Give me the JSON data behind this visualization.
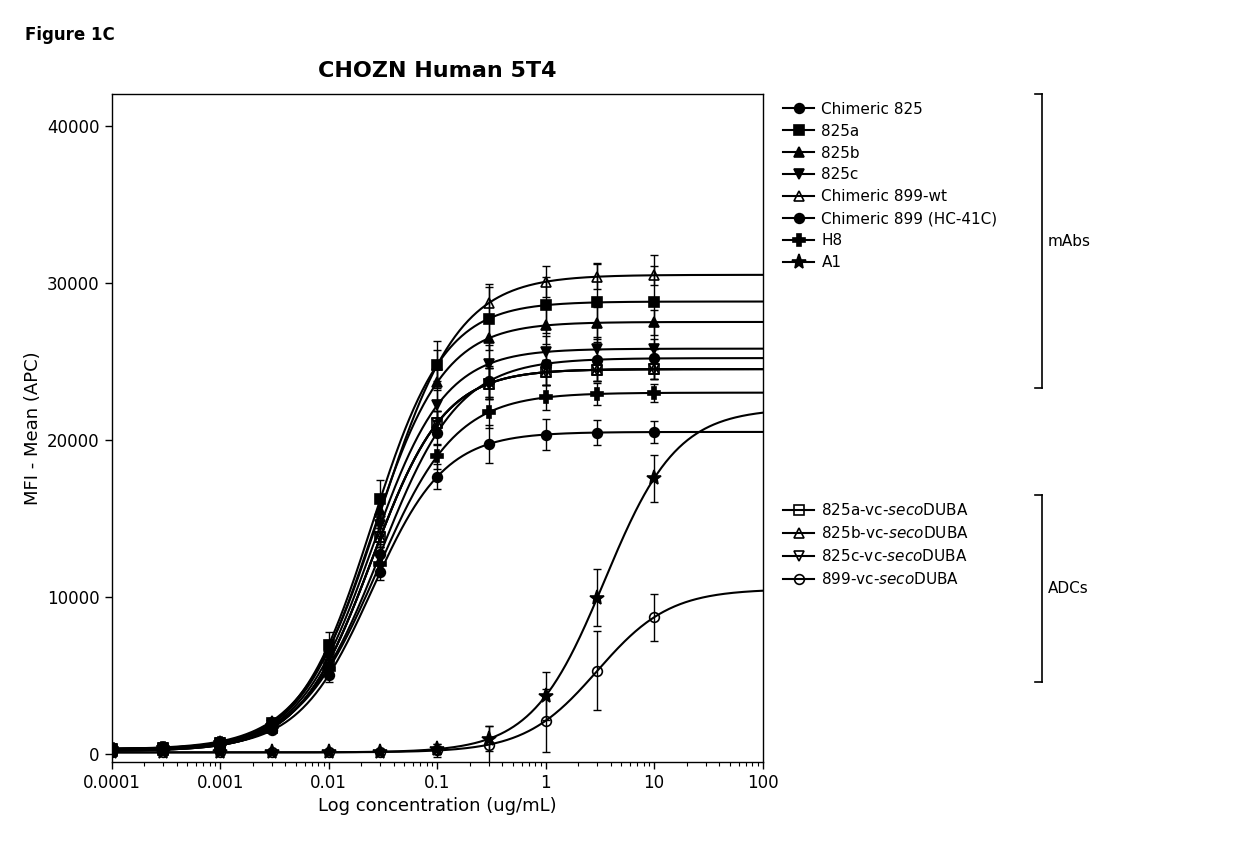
{
  "title": "CHOZN Human 5T4",
  "xlabel": "Log concentration (ug/mL)",
  "ylabel": "MFI - Mean (APC)",
  "figure_label": "Figure 1C",
  "ylim": [
    -500,
    42000
  ],
  "yticks": [
    0,
    10000,
    20000,
    30000,
    40000
  ],
  "ytick_labels": [
    "0",
    "10000",
    "20000",
    "30000",
    "40000"
  ],
  "xtick_locs": [
    0.0001,
    0.001,
    0.01,
    0.1,
    1,
    10,
    100
  ],
  "xtick_labels": [
    "0.0001",
    "0.001",
    "0.01",
    "0.1",
    "1",
    "10",
    "100"
  ],
  "series": [
    {
      "name": "Chimeric 825",
      "marker": "o",
      "fillstyle": "full",
      "ec50": 0.025,
      "bottom": 300,
      "top": 20500,
      "hill": 1.3,
      "group": "mAbs",
      "data_x": [
        0.0001,
        0.0003,
        0.001,
        0.003,
        0.01,
        0.03,
        0.1,
        0.3,
        1.0,
        3.0,
        10.0
      ],
      "data_yerr": [
        200,
        150,
        200,
        200,
        400,
        500,
        800,
        1200,
        1000,
        800,
        700
      ]
    },
    {
      "name": "825a",
      "marker": "s",
      "fillstyle": "full",
      "ec50": 0.025,
      "bottom": 300,
      "top": 28800,
      "hill": 1.3,
      "group": "mAbs",
      "data_x": [
        0.0001,
        0.0003,
        0.001,
        0.003,
        0.01,
        0.03,
        0.1,
        0.3,
        1.0,
        3.0,
        10.0
      ],
      "data_yerr": [
        200,
        200,
        250,
        300,
        800,
        1200,
        1500,
        2000,
        1800,
        2500,
        3000
      ]
    },
    {
      "name": "825b",
      "marker": "^",
      "fillstyle": "full",
      "ec50": 0.025,
      "bottom": 300,
      "top": 27500,
      "hill": 1.3,
      "group": "mAbs",
      "data_x": [
        0.0001,
        0.0003,
        0.001,
        0.003,
        0.01,
        0.03,
        0.1,
        0.3,
        1.0,
        3.0,
        10.0
      ],
      "data_yerr": [
        150,
        150,
        200,
        250,
        600,
        900,
        1200,
        1500,
        1200,
        1000,
        800
      ]
    },
    {
      "name": "825c",
      "marker": "v",
      "fillstyle": "full",
      "ec50": 0.025,
      "bottom": 300,
      "top": 25800,
      "hill": 1.3,
      "group": "mAbs",
      "data_x": [
        0.0001,
        0.0003,
        0.001,
        0.003,
        0.01,
        0.03,
        0.1,
        0.3,
        1.0,
        3.0,
        10.0
      ],
      "data_yerr": [
        150,
        150,
        200,
        250,
        500,
        700,
        1000,
        1200,
        1000,
        800,
        600
      ]
    },
    {
      "name": "Chimeric 899-wt",
      "marker": "^",
      "fillstyle": "none",
      "ec50": 0.03,
      "bottom": 300,
      "top": 30500,
      "hill": 1.2,
      "group": "mAbs",
      "data_x": [
        0.0001,
        0.0003,
        0.001,
        0.003,
        0.01,
        0.03,
        0.1,
        0.3,
        1.0,
        3.0,
        10.0
      ],
      "data_yerr": [
        200,
        150,
        200,
        200,
        500,
        700,
        1000,
        1200,
        1000,
        800,
        600
      ]
    },
    {
      "name": "Chimeric 899 (HC-41C)",
      "marker": "o",
      "fillstyle": "full",
      "ec50": 0.03,
      "bottom": 300,
      "top": 25200,
      "hill": 1.2,
      "group": "mAbs",
      "data_x": [
        0.0001,
        0.0003,
        0.001,
        0.003,
        0.01,
        0.03,
        0.1,
        0.3,
        1.0,
        3.0,
        10.0
      ],
      "data_yerr": [
        150,
        150,
        200,
        200,
        400,
        600,
        800,
        1000,
        800,
        700,
        600
      ]
    },
    {
      "name": "H8",
      "marker": "P",
      "fillstyle": "full",
      "ec50": 0.028,
      "bottom": 300,
      "top": 23000,
      "hill": 1.2,
      "group": "mAbs",
      "data_x": [
        0.0001,
        0.0003,
        0.001,
        0.003,
        0.01,
        0.03,
        0.1,
        0.3,
        1.0,
        3.0,
        10.0
      ],
      "data_yerr": [
        150,
        150,
        200,
        200,
        400,
        600,
        800,
        1000,
        800,
        700,
        600
      ]
    },
    {
      "name": "A1",
      "marker": "*",
      "fillstyle": "full",
      "ec50": 3.5,
      "bottom": 100,
      "top": 22000,
      "hill": 1.3,
      "group": "mAbs",
      "data_x": [
        0.0001,
        0.0003,
        0.001,
        0.003,
        0.01,
        0.03,
        0.1,
        0.3,
        1.0,
        3.0,
        10.0
      ],
      "data_yerr": [
        100,
        100,
        100,
        100,
        150,
        200,
        300,
        800,
        1500,
        1800,
        1500
      ]
    },
    {
      "name": "825a-vc-secoDUBA",
      "marker": "s",
      "fillstyle": "none",
      "ec50": 0.025,
      "bottom": 200,
      "top": 24500,
      "hill": 1.3,
      "group": "ADCs",
      "data_x": [
        0.0001,
        0.0003,
        0.001,
        0.003,
        0.01,
        0.03,
        0.1,
        0.3,
        1.0,
        3.0,
        10.0
      ],
      "data_yerr": [
        150,
        150,
        200,
        200,
        400,
        600,
        800,
        1000,
        800,
        700,
        600
      ]
    },
    {
      "name": "825b-vc-secoDUBA",
      "marker": "^",
      "fillstyle": "none",
      "ec50": 0.025,
      "bottom": 200,
      "top": 24500,
      "hill": 1.3,
      "group": "ADCs",
      "data_x": [
        0.0001,
        0.0003,
        0.001,
        0.003,
        0.01,
        0.03,
        0.1,
        0.3,
        1.0,
        3.0,
        10.0
      ],
      "data_yerr": [
        150,
        150,
        200,
        200,
        400,
        600,
        800,
        1000,
        800,
        700,
        600
      ]
    },
    {
      "name": "825c-vc-secoDUBA",
      "marker": "v",
      "fillstyle": "none",
      "ec50": 0.025,
      "bottom": 200,
      "top": 24500,
      "hill": 1.3,
      "group": "ADCs",
      "data_x": [
        0.0001,
        0.0003,
        0.001,
        0.003,
        0.01,
        0.03,
        0.1,
        0.3,
        1.0,
        3.0,
        10.0
      ],
      "data_yerr": [
        150,
        150,
        200,
        200,
        400,
        600,
        800,
        1000,
        800,
        700,
        600
      ]
    },
    {
      "name": "899-vc-secoDUBA",
      "marker": "o",
      "fillstyle": "none",
      "ec50": 3.0,
      "bottom": 100,
      "top": 10500,
      "hill": 1.3,
      "group": "ADCs",
      "data_x": [
        0.0001,
        0.0003,
        0.001,
        0.003,
        0.01,
        0.03,
        0.1,
        0.3,
        1.0,
        3.0,
        10.0
      ],
      "data_yerr": [
        100,
        100,
        100,
        100,
        150,
        200,
        400,
        1200,
        2000,
        2500,
        1500
      ]
    }
  ],
  "color": "#000000",
  "markersize": 7,
  "linewidth": 1.5,
  "background_color": "#ffffff",
  "title_fontsize": 16,
  "label_fontsize": 13,
  "tick_fontsize": 12,
  "legend_fontsize": 11
}
